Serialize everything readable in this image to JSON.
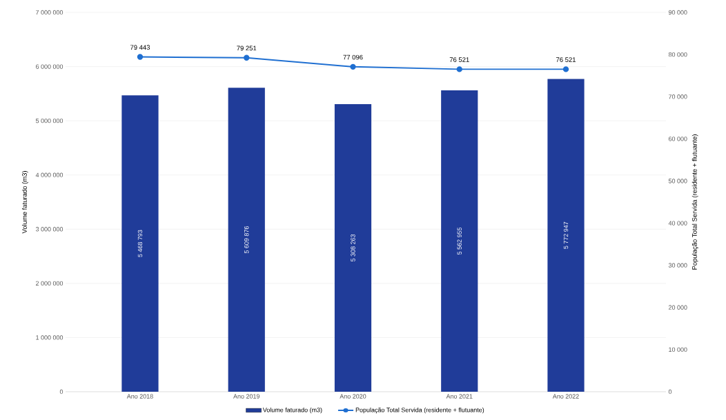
{
  "chart_data": {
    "type": "bar",
    "categories": [
      "Ano 2018",
      "Ano 2019",
      "Ano 2020",
      "Ano 2021",
      "Ano 2022"
    ],
    "ylabel": "Volume faturado (m3)",
    "y2label": "População Total Servida (residente + flutuante)",
    "ylim": [
      0,
      7000000
    ],
    "yticks": [
      0,
      {
        "value": 1000000,
        "label": "1 000 000"
      },
      {
        "value": 2000000,
        "label": "2 000 000"
      },
      {
        "value": 3000000,
        "label": "3 000 000"
      },
      {
        "value": 4000000,
        "label": "4 000 000"
      },
      {
        "value": 5000000,
        "label": "5 000 000"
      },
      {
        "value": 6000000,
        "label": "6 000 000"
      },
      {
        "value": 7000000,
        "label": "7 000 000"
      }
    ],
    "y2lim": [
      0,
      90000
    ],
    "y2ticks": [
      0,
      {
        "value": 10000,
        "label": "10 000"
      },
      {
        "value": 20000,
        "label": "20 000"
      },
      {
        "value": 30000,
        "label": "30 000"
      },
      {
        "value": 40000,
        "label": "40 000"
      },
      {
        "value": 50000,
        "label": "50 000"
      },
      {
        "value": 60000,
        "label": "60 000"
      },
      {
        "value": 70000,
        "label": "70 000"
      },
      {
        "value": 80000,
        "label": "80 000"
      },
      {
        "value": 90000,
        "label": "90 000"
      }
    ],
    "series": [
      {
        "name": "Volume faturado (m3)",
        "color": "#203c99",
        "values": [
          5468793,
          5609876,
          5308263,
          5562955,
          5772947
        ],
        "value_labels": [
          "5 468 793",
          "5 609 876",
          "5 308 263",
          "5 562 955",
          "5 772 947"
        ]
      },
      {
        "name": "População Total Servida (residente + flutuante)",
        "type": "line",
        "axis": "y2",
        "color": "#1f6fd1",
        "values": [
          79443,
          79251,
          77096,
          76521,
          76521
        ],
        "value_labels": [
          "79 443",
          "79 251",
          "77 096",
          "76 521",
          "76 521"
        ]
      }
    ],
    "grid": "y",
    "legend": "bottom",
    "marker": "circle",
    "line_style": "solid"
  }
}
